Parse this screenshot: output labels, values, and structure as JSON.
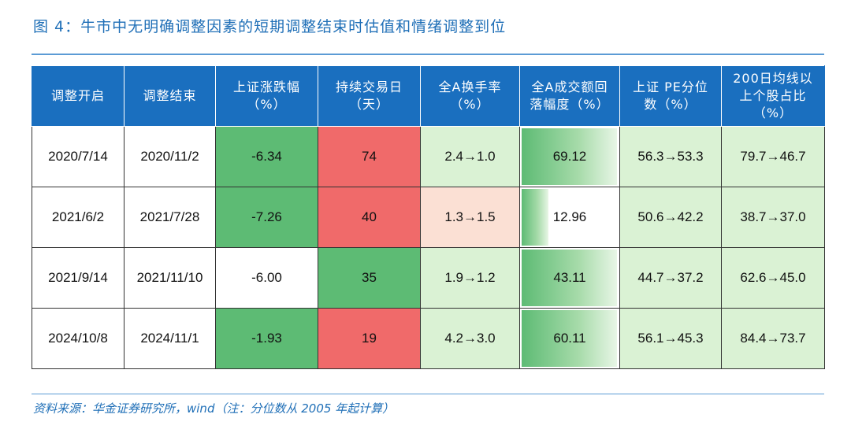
{
  "title": "图 4：牛市中无明确调整因素的短期调整结束时估值和情绪调整到位",
  "table": {
    "headers": [
      "调整开启",
      "调整结束",
      "上证涨跌幅\n（%）",
      "持续交易日\n（天）",
      "全A换手率\n（%）",
      "全A成交额回\n落幅度（%）",
      "上证 PE分位\n数（%）",
      "200日均线以\n上个股占比\n（%）"
    ],
    "rows": [
      {
        "start": "2020/7/14",
        "end": "2020/11/2",
        "change": "-6.34",
        "days": "74",
        "turnover": "2.4→1.0",
        "volume_drop": "69.12",
        "volume_drop_fraction": 0.99,
        "pe_pct": "56.3→53.3",
        "ma200_pct": "79.7→46.7",
        "colors": {
          "change": "#5dbb74",
          "days": "#f06a6a",
          "turnover": "#daf2d4"
        }
      },
      {
        "start": "2021/6/2",
        "end": "2021/7/28",
        "change": "-7.26",
        "days": "40",
        "turnover": "1.3→1.5",
        "volume_drop": "12.96",
        "volume_drop_fraction": 0.3,
        "pe_pct": "50.6→42.2",
        "ma200_pct": "38.7→37.0",
        "colors": {
          "change": "#5dbb74",
          "days": "#f06a6a",
          "turnover": "#fbe0d4"
        }
      },
      {
        "start": "2021/9/14",
        "end": "2021/11/10",
        "change": "-6.00",
        "days": "35",
        "turnover": "1.9→1.2",
        "volume_drop": "43.11",
        "volume_drop_fraction": 0.99,
        "pe_pct": "44.7→37.2",
        "ma200_pct": "62.6→45.0",
        "colors": {
          "change": "#ffffff",
          "days": "#5dbb74",
          "turnover": "#daf2d4"
        }
      },
      {
        "start": "2024/10/8",
        "end": "2024/11/1",
        "change": "-1.93",
        "days": "19",
        "turnover": "4.2→3.0",
        "volume_drop": "60.11",
        "volume_drop_fraction": 0.99,
        "pe_pct": "56.1→45.3",
        "ma200_pct": "84.4→73.7",
        "colors": {
          "change": "#5dbb74",
          "days": "#f06a6a",
          "turnover": "#daf2d4"
        }
      }
    ]
  },
  "source": "资料来源：华金证券研究所，wind（注：分位数从 2005 年起计算）"
}
